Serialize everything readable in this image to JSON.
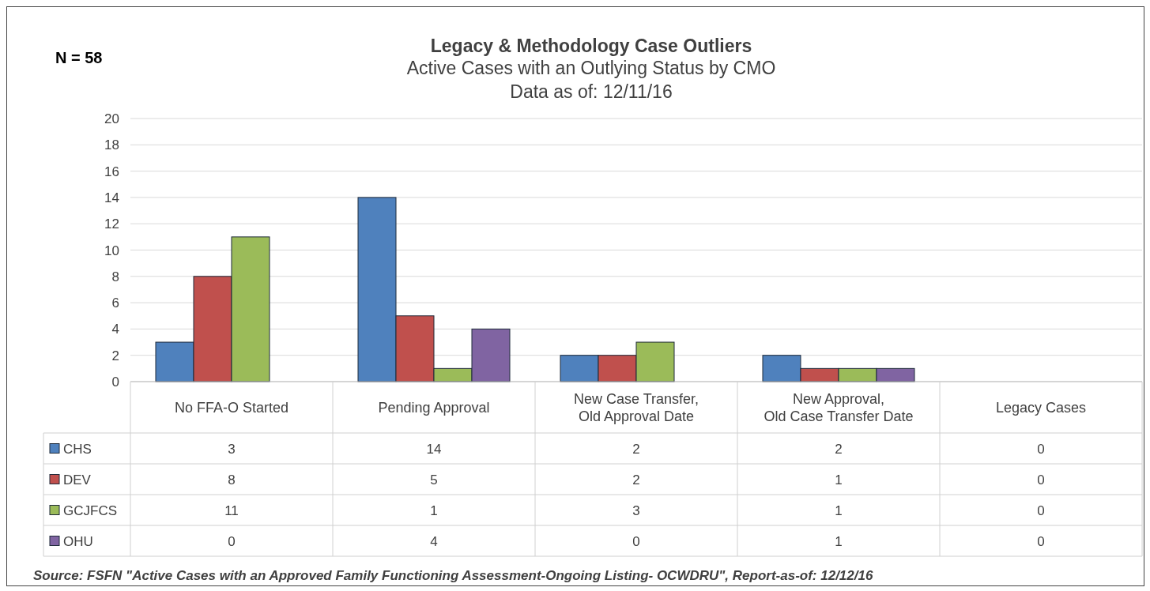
{
  "chart_data": {
    "type": "bar",
    "title": "Legacy & Methodology Case Outliers",
    "subtitle": "Active Cases with an Outlying Status by CMO\nData as of: 12/11/16",
    "categories": [
      "No FFA-O Started",
      "Pending Approval",
      "New Case Transfer,\nOld Approval Date",
      "New Approval,\nOld Case Transfer Date",
      "Legacy Cases"
    ],
    "series": [
      {
        "name": "CHS",
        "color": "#4f81bd",
        "values": [
          3,
          14,
          2,
          2,
          0
        ]
      },
      {
        "name": "DEV",
        "color": "#c0504d",
        "values": [
          8,
          5,
          2,
          1,
          0
        ]
      },
      {
        "name": "GCJFCS",
        "color": "#9bbb59",
        "values": [
          11,
          1,
          3,
          1,
          0
        ]
      },
      {
        "name": "OHU",
        "color": "#8064a2",
        "values": [
          0,
          4,
          0,
          1,
          0
        ]
      }
    ],
    "ylim": [
      0,
      20
    ],
    "yticks": [
      0,
      2,
      4,
      6,
      8,
      10,
      12,
      14,
      16,
      18,
      20
    ],
    "grid": "y",
    "legend": "bottom",
    "data_labels": true,
    "annotations": [
      "N =  58",
      "Source: FSFN \"Active Cases with an Approved Family Functioning Assessment-Ongoing Listing- OCWDRU\",  Report-as-of: 12/12/16"
    ]
  }
}
